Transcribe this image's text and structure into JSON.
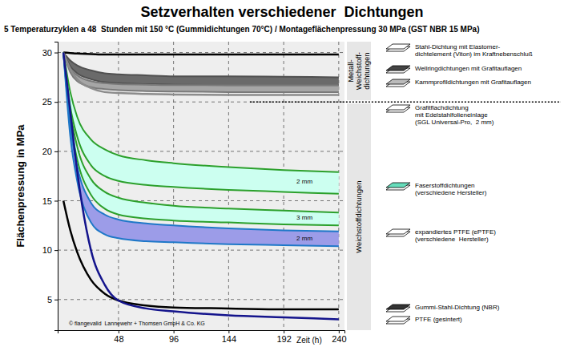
{
  "chart_data": {
    "type": "line",
    "title": "Setzverhalten verschiedener  Dichtungen",
    "subtitle": "5 Temperaturzyklen a 48  Stunden mit 150 °C (Gummidichtungen 70°C) / Montageflächenpressung 30 MPa (GST NBR 15 MPa)",
    "x_label": "Zeit (h)",
    "y_label": "Flächenpressung in MPa",
    "footnote": "© flangevalid  Lannewehr + Thomsen GmbH & Co. KG",
    "x": [
      0,
      6,
      12,
      24,
      36,
      48,
      72,
      96,
      144,
      192,
      240
    ],
    "xlim": [
      -5,
      245
    ],
    "xticks": [
      48,
      96,
      144,
      192,
      240
    ],
    "ylim": [
      1.9,
      31.1
    ],
    "yticks": [
      5,
      10,
      15,
      20,
      25,
      30
    ],
    "grid": true,
    "group_boundary": 25,
    "groups": [
      {
        "label": "Metall-\nWeichstoff-\ndichtungen"
      },
      {
        "label": "Weichstoffdichtungen"
      }
    ],
    "series": [
      {
        "name": "Stahl-Dichtung mit Elastomer-\ndichtelement (Viton) im Kraftnebenschluß",
        "type": "line",
        "color": "#000000",
        "values": [
          30,
          29.95,
          29.9,
          29.85,
          29.8,
          29.8,
          29.8,
          29.8,
          29.8,
          29.8,
          29.8
        ]
      },
      {
        "name": "Wellringdichtungen mit Grafitauflagen",
        "type": "band",
        "color": "#505050",
        "bands": [
          {
            "upper": [
              30,
              29.2,
              28.7,
              28.2,
              27.9,
              27.8,
              27.7,
              27.6,
              27.6,
              27.55,
              27.5
            ],
            "lower": [
              30,
              28.6,
              27.9,
              27.3,
              27.0,
              26.9,
              26.8,
              26.75,
              26.7,
              26.7,
              26.7
            ]
          }
        ]
      },
      {
        "name": "Kammprofildichtungen mit Grafitauflagen",
        "type": "band",
        "color": "#7a7a7a",
        "bands": [
          {
            "upper": [
              30,
              28.4,
              27.7,
              27.1,
              26.9,
              26.8,
              26.75,
              26.7,
              26.7,
              26.7,
              26.7
            ],
            "lower": [
              30,
              28.0,
              27.1,
              26.5,
              26.3,
              26.2,
              26.1,
              26.05,
              26.0,
              26.0,
              26.0
            ]
          }
        ]
      },
      {
        "name": "Grafitflachdichtung\nmit Edelstahlfolieneinlage\n(SGL Universal-Pro,  2 mm)",
        "type": "line",
        "color": "#8c8c8c",
        "values": [
          30,
          28.3,
          27.3,
          26.4,
          26.0,
          25.9,
          25.8,
          25.75,
          25.7,
          25.7,
          25.7
        ]
      },
      {
        "name": "Faserstoffdichtungen\n(verschiedene Hersteller)",
        "type": "band",
        "color": "#2ca02c",
        "bands": [
          {
            "label": "2 mm",
            "upper": [
              30,
              26,
              23.5,
              21.2,
              20.2,
              19.6,
              19.1,
              18.8,
              18.4,
              18.1,
              17.9
            ],
            "lower": [
              30,
              24.5,
              21.5,
              18.6,
              17.5,
              17.0,
              16.6,
              16.4,
              16.1,
              15.9,
              15.7
            ]
          },
          {
            "label": "3 mm",
            "upper": [
              30,
              24,
              20.5,
              17.2,
              15.9,
              15.3,
              14.8,
              14.5,
              14.2,
              14.0,
              13.8
            ],
            "lower": [
              30,
              23,
              19.2,
              15.6,
              14.2,
              13.6,
              13.2,
              13.0,
              12.8,
              12.6,
              12.5
            ]
          }
        ]
      },
      {
        "name": "expandiertes PTFE (ePTFE)\n(verschiedene  Hersteller)",
        "type": "band",
        "color": "#1f78c8",
        "bands": [
          {
            "label": "2 mm",
            "upper": [
              30,
              22.5,
              18.5,
              14.8,
              13.6,
              13.1,
              12.7,
              12.5,
              12.2,
              12.0,
              11.9
            ],
            "lower": [
              30,
              21.5,
              17,
              12.8,
              11.6,
              11.2,
              10.9,
              10.8,
              10.6,
              10.5,
              10.4
            ]
          }
        ]
      },
      {
        "name": "Gummi-Stahl-Dichtung (NBR)",
        "type": "line",
        "color": "#000000",
        "values": [
          15,
          12,
          9.8,
          7.0,
          5.6,
          4.9,
          4.4,
          4.2,
          4.1,
          4.0,
          4.0
        ]
      },
      {
        "name": "PTFE (gesintert)",
        "type": "line",
        "color": "#14148c",
        "values": [
          30,
          24,
          18,
          10,
          6.5,
          4.9,
          4.1,
          3.8,
          3.4,
          3.2,
          3.0
        ]
      }
    ]
  }
}
